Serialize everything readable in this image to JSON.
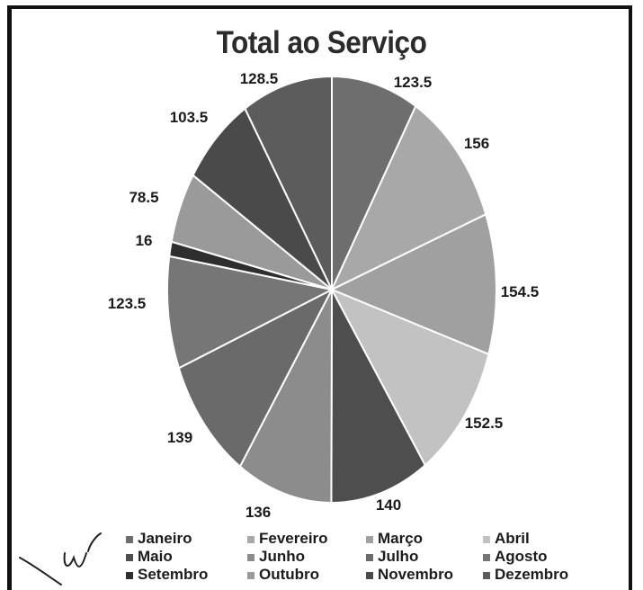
{
  "chart_data": {
    "type": "pie",
    "title": "Total ao Serviço",
    "categories": [
      "Janeiro",
      "Fevereiro",
      "Março",
      "Abril",
      "Maio",
      "Junho",
      "Julho",
      "Agosto",
      "Setembro",
      "Outubro",
      "Novembro",
      "Dezembro"
    ],
    "values": [
      123.5,
      156,
      154.5,
      152.5,
      140,
      136,
      139,
      123.5,
      16,
      78.5,
      103.5,
      128.5
    ],
    "value_labels": [
      "123.5",
      "156",
      "154.5",
      "152.5",
      "140",
      "136",
      "139",
      "123.5",
      "16",
      "78.5",
      "103.5",
      "128.5"
    ],
    "colors": [
      "#6e6e6e",
      "#a8a8a8",
      "#a0a0a0",
      "#c2c2c2",
      "#4e4e4e",
      "#8c8c8c",
      "#6a6a6a",
      "#767676",
      "#2e2e2e",
      "#9a9a9a",
      "#4a4a4a",
      "#5c5c5c"
    ],
    "legend_position": "bottom"
  }
}
